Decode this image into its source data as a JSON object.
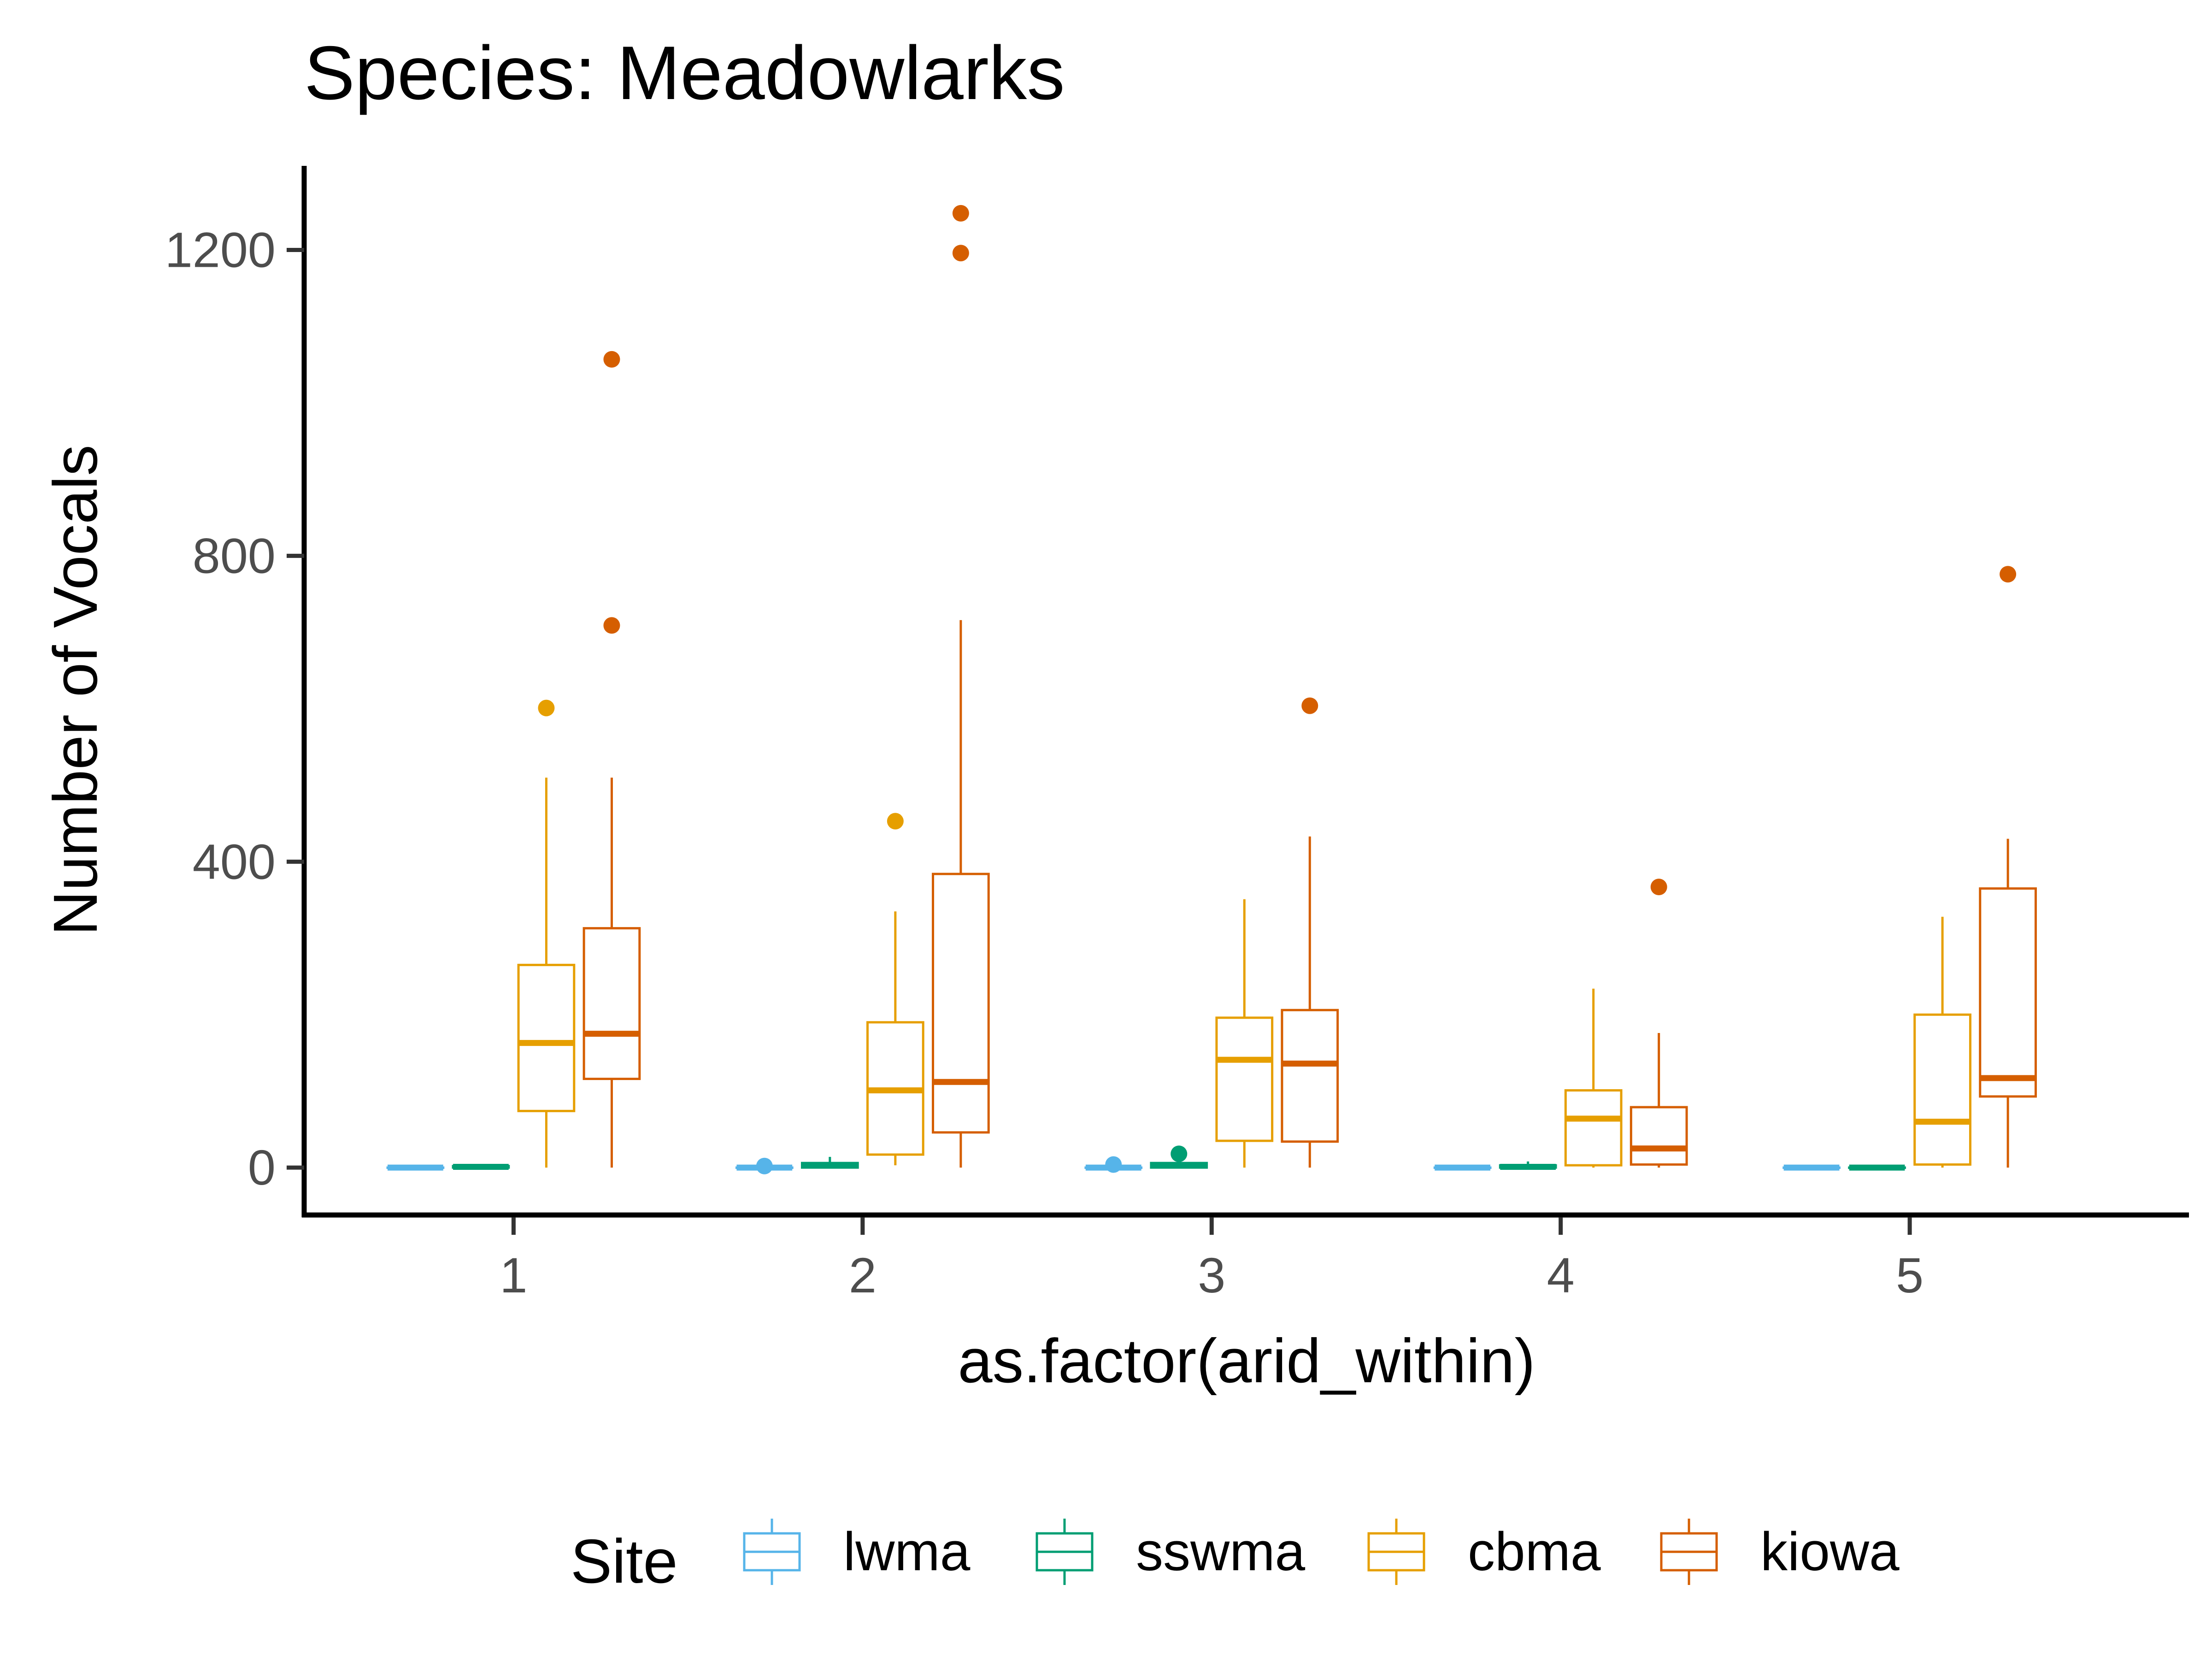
{
  "chart_data": {
    "type": "box",
    "title": "Species: Meadowlarks",
    "xlabel": "as.factor(arid_within)",
    "ylabel": "Number of Vocals",
    "categories": [
      "1",
      "2",
      "3",
      "4",
      "5"
    ],
    "yticks": [
      0,
      400,
      800,
      1200
    ],
    "ylim": [
      -62,
      1310
    ],
    "grid": false,
    "legend": {
      "title": "Site",
      "position": "bottom"
    },
    "series": [
      {
        "name": "lwma",
        "color": "#56B4E9",
        "boxes": [
          {
            "category": "1",
            "min": 0,
            "q1": 0,
            "median": 0,
            "q3": 0,
            "max": 0,
            "outliers": []
          },
          {
            "category": "2",
            "min": 0,
            "q1": 0,
            "median": 0,
            "q3": 0,
            "max": 0,
            "outliers": [
              2
            ]
          },
          {
            "category": "3",
            "min": 0,
            "q1": 0,
            "median": 0,
            "q3": 0,
            "max": 0,
            "outliers": [
              4
            ]
          },
          {
            "category": "4",
            "min": 0,
            "q1": 0,
            "median": 0,
            "q3": 0,
            "max": 0,
            "outliers": []
          },
          {
            "category": "5",
            "min": 0,
            "q1": 0,
            "median": 0,
            "q3": 0,
            "max": 0,
            "outliers": []
          }
        ]
      },
      {
        "name": "sswma",
        "color": "#009E73",
        "boxes": [
          {
            "category": "1",
            "min": 0,
            "q1": 0,
            "median": 1,
            "q3": 2,
            "max": 2,
            "outliers": []
          },
          {
            "category": "2",
            "min": 0,
            "q1": 0,
            "median": 3,
            "q3": 6,
            "max": 14,
            "outliers": []
          },
          {
            "category": "3",
            "min": 0,
            "q1": 0,
            "median": 3,
            "q3": 6,
            "max": 8,
            "outliers": [
              18
            ]
          },
          {
            "category": "4",
            "min": 0,
            "q1": 0,
            "median": 1,
            "q3": 3,
            "max": 8,
            "outliers": []
          },
          {
            "category": "5",
            "min": 0,
            "q1": 0,
            "median": 0,
            "q3": 0,
            "max": 0,
            "outliers": []
          }
        ]
      },
      {
        "name": "cbma",
        "color": "#E69F00",
        "boxes": [
          {
            "category": "1",
            "min": 0,
            "q1": 74,
            "median": 163,
            "q3": 265,
            "max": 510,
            "outliers": [
              601
            ]
          },
          {
            "category": "2",
            "min": 3,
            "q1": 17,
            "median": 101,
            "q3": 190,
            "max": 335,
            "outliers": [
              453
            ]
          },
          {
            "category": "3",
            "min": 0,
            "q1": 35,
            "median": 141,
            "q3": 196,
            "max": 351,
            "outliers": []
          },
          {
            "category": "4",
            "min": 0,
            "q1": 3,
            "median": 64,
            "q3": 101,
            "max": 234,
            "outliers": []
          },
          {
            "category": "5",
            "min": 0,
            "q1": 4,
            "median": 60,
            "q3": 200,
            "max": 328,
            "outliers": []
          }
        ]
      },
      {
        "name": "kiowa",
        "color": "#D55E00",
        "boxes": [
          {
            "category": "1",
            "min": 0,
            "q1": 116,
            "median": 175,
            "q3": 313,
            "max": 510,
            "outliers": [
              709,
              1057
            ]
          },
          {
            "category": "2",
            "min": 0,
            "q1": 46,
            "median": 112,
            "q3": 384,
            "max": 716,
            "outliers": [
              1196,
              1248
            ]
          },
          {
            "category": "3",
            "min": 0,
            "q1": 34,
            "median": 136,
            "q3": 206,
            "max": 433,
            "outliers": [
              604
            ]
          },
          {
            "category": "4",
            "min": 0,
            "q1": 4,
            "median": 25,
            "q3": 79,
            "max": 176,
            "outliers": [
              367
            ]
          },
          {
            "category": "5",
            "min": 0,
            "q1": 93,
            "median": 117,
            "q3": 365,
            "max": 430,
            "outliers": [
              776
            ]
          }
        ]
      }
    ]
  }
}
